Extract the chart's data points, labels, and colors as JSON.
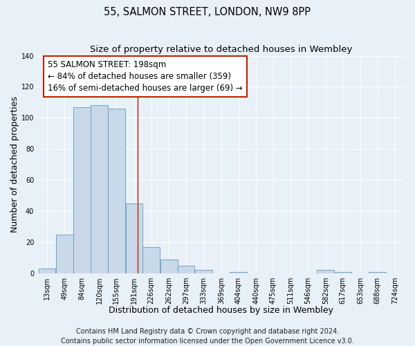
{
  "title1": "55, SALMON STREET, LONDON, NW9 8PP",
  "title2": "Size of property relative to detached houses in Wembley",
  "xlabel": "Distribution of detached houses by size in Wembley",
  "ylabel": "Number of detached properties",
  "bin_labels": [
    "13sqm",
    "49sqm",
    "84sqm",
    "120sqm",
    "155sqm",
    "191sqm",
    "226sqm",
    "262sqm",
    "297sqm",
    "333sqm",
    "369sqm",
    "404sqm",
    "440sqm",
    "475sqm",
    "511sqm",
    "546sqm",
    "582sqm",
    "617sqm",
    "653sqm",
    "688sqm",
    "724sqm"
  ],
  "bin_centers": [
    13,
    49,
    84,
    120,
    155,
    191,
    226,
    262,
    297,
    333,
    369,
    404,
    440,
    475,
    511,
    546,
    582,
    617,
    653,
    688,
    724
  ],
  "bar_heights": [
    3,
    25,
    107,
    108,
    106,
    45,
    17,
    9,
    5,
    2,
    0,
    1,
    0,
    0,
    0,
    0,
    2,
    1,
    0,
    1,
    0
  ],
  "bar_color": "#c9d9ea",
  "bar_edge_color": "#6699bb",
  "property_line_x": 198,
  "property_line_color": "#bb2200",
  "annotation_line1": "55 SALMON STREET: 198sqm",
  "annotation_line2": "← 84% of detached houses are smaller (359)",
  "annotation_line3": "16% of semi-detached houses are larger (69) →",
  "annotation_fontsize": 8.5,
  "annotation_box_color": "#ffffff",
  "annotation_box_edge": "#bb2200",
  "ylim": [
    0,
    140
  ],
  "yticks": [
    0,
    20,
    40,
    60,
    80,
    100,
    120,
    140
  ],
  "background_color": "#e8f0f8",
  "footer1": "Contains HM Land Registry data © Crown copyright and database right 2024.",
  "footer2": "Contains public sector information licensed under the Open Government Licence v3.0.",
  "title_fontsize": 10.5,
  "subtitle_fontsize": 9.5,
  "axis_label_fontsize": 9,
  "tick_fontsize": 7,
  "footer_fontsize": 7
}
